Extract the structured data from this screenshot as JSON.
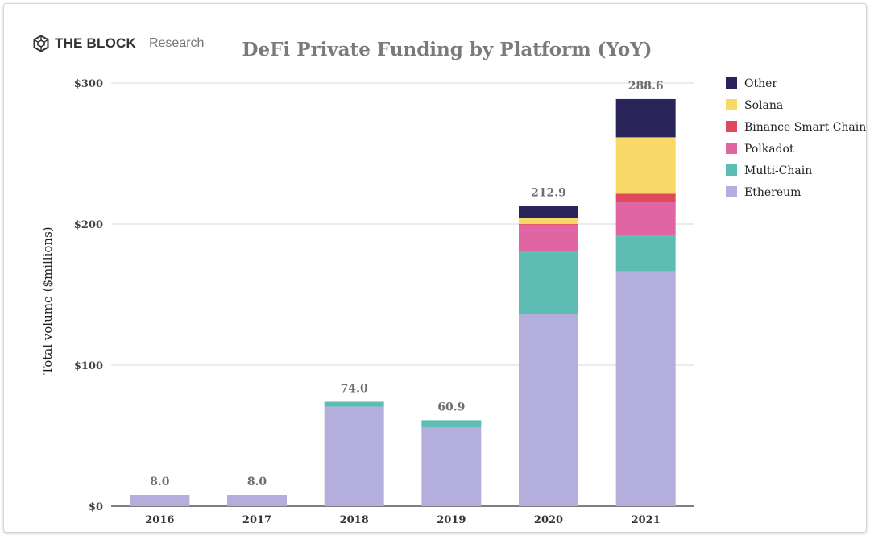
{
  "branding": {
    "name": "THE BLOCK",
    "sub": "Research"
  },
  "chart_data": {
    "type": "bar",
    "stacked": true,
    "title": "DeFi Private Funding by Platform (YoY)",
    "xlabel": "",
    "ylabel": "Total volume ($millions)",
    "ylim": [
      0,
      300
    ],
    "yticks": [
      {
        "value": 0,
        "label": "$0"
      },
      {
        "value": 100,
        "label": "$100"
      },
      {
        "value": 200,
        "label": "$200"
      },
      {
        "value": 300,
        "label": "$300"
      }
    ],
    "categories": [
      "2016",
      "2017",
      "2018",
      "2019",
      "2020",
      "2021"
    ],
    "series": [
      {
        "name": "Ethereum",
        "color": "#b4aedd",
        "values": [
          8.0,
          8.0,
          70.5,
          56.0,
          136.5,
          166.5
        ]
      },
      {
        "name": "Multi-Chain",
        "color": "#5ebdb2",
        "values": [
          0,
          0,
          3.5,
          4.9,
          44.5,
          25.5
        ]
      },
      {
        "name": "Polkadot",
        "color": "#e065a3",
        "values": [
          0,
          0,
          0,
          0,
          18.5,
          24.0
        ]
      },
      {
        "name": "Binance Smart Chain",
        "color": "#e0485b",
        "values": [
          0,
          0,
          0,
          0,
          0.5,
          5.5
        ]
      },
      {
        "name": "Solana",
        "color": "#f8d866",
        "values": [
          0,
          0,
          0,
          0,
          4.0,
          40.0
        ]
      },
      {
        "name": "Other",
        "color": "#29255a",
        "values": [
          0,
          0,
          0,
          0,
          8.9,
          27.1
        ]
      }
    ],
    "totals": [
      "8.0",
      "8.0",
      "74.0",
      "60.9",
      "212.9",
      "288.6"
    ],
    "legend": [
      "Other",
      "Solana",
      "Binance Smart Chain",
      "Polkadot",
      "Multi-Chain",
      "Ethereum"
    ],
    "legend_position": "right",
    "grid": true
  }
}
